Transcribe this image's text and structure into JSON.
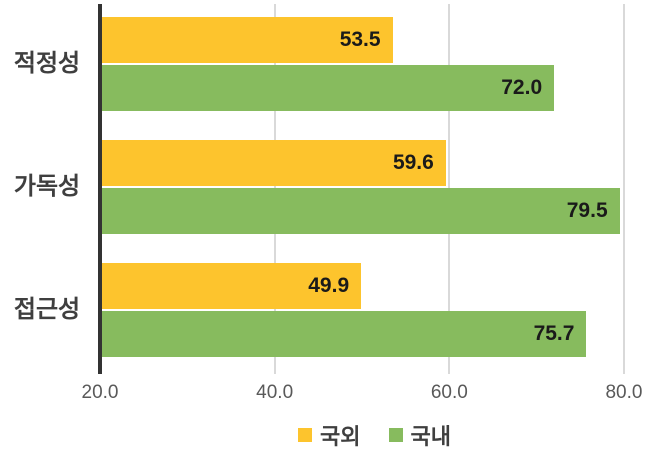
{
  "chart_data": {
    "type": "bar",
    "orientation": "horizontal",
    "title": "",
    "categories": [
      "적정성",
      "가독성",
      "접근성"
    ],
    "series": [
      {
        "name": "국외",
        "color": "#FDC42D",
        "values": [
          53.5,
          59.6,
          49.9
        ],
        "labels": [
          "53.5",
          "59.6",
          "49.9"
        ]
      },
      {
        "name": "국내",
        "color": "#87BB5E",
        "values": [
          72.0,
          79.5,
          75.7
        ],
        "labels": [
          "72.0",
          "79.5",
          "75.7"
        ]
      }
    ],
    "xlim": [
      20,
      80
    ],
    "xticks": [
      {
        "value": 20,
        "label": "20.0"
      },
      {
        "value": 40,
        "label": "40.0"
      },
      {
        "value": 60,
        "label": "60.0"
      },
      {
        "value": 80,
        "label": "80.0"
      }
    ],
    "grid": "vertical",
    "legend_position": "bottom-center",
    "value_labels": "inside-end",
    "colors": {
      "axis_line": "#333333",
      "gridline": "#D9D9D9",
      "category_label": "#3F3F3F",
      "tick_label": "#595959",
      "value_label": "#1A1A1A",
      "legend_label": "#3F3F3F",
      "background": "#FFFFFF"
    }
  }
}
